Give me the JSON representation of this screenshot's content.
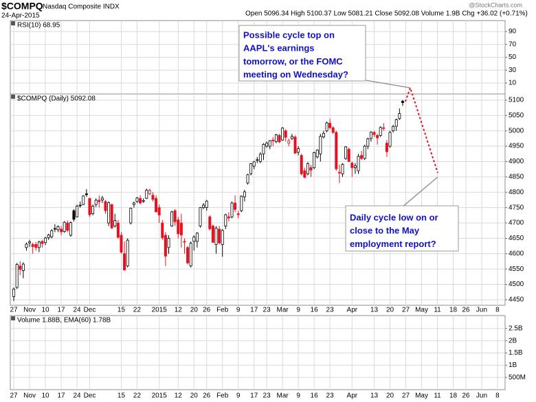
{
  "header": {
    "symbol": "$COMPQ",
    "name": "Nasdaq Composite INDX",
    "date": "24-Apr-2015",
    "quote": "Open 5096.34 High 5100.37 Low 5081.21 Close 5092.08 Volume 1.9B Chg +36.02 (+0.71%)",
    "source": "@StockCharts.com"
  },
  "chart_data": [
    {
      "type": "indicator",
      "label": "RSI(10) 68.95",
      "ylim": [
        -7,
        107
      ],
      "yticks": [
        10,
        30,
        50,
        70,
        90
      ],
      "grid": true
    },
    {
      "type": "candlestick",
      "label": "$COMPQ (Daily) 5092.08",
      "ylim": [
        4432,
        5120
      ],
      "yticks": [
        4450,
        4500,
        4550,
        4600,
        4650,
        4700,
        4750,
        4800,
        4850,
        4900,
        4950,
        5000,
        5050,
        5100
      ],
      "xlim": [
        -1.1,
        155.4
      ],
      "grid": true,
      "up_color": "#000000",
      "down_color": "#e8101e",
      "xticks": [
        {
          "value": 0,
          "label": "27"
        },
        {
          "value": 5,
          "label": "Nov"
        },
        {
          "value": 10,
          "label": "10"
        },
        {
          "value": 15,
          "label": "17"
        },
        {
          "value": 20,
          "label": "24"
        },
        {
          "value": 24,
          "label": "Dec"
        },
        {
          "value": 34,
          "label": "15"
        },
        {
          "value": 39,
          "label": "22"
        },
        {
          "value": 46,
          "label": "2015"
        },
        {
          "value": 52,
          "label": "12"
        },
        {
          "value": 57,
          "label": "20"
        },
        {
          "value": 61,
          "label": "26"
        },
        {
          "value": 66,
          "label": "Feb"
        },
        {
          "value": 71,
          "label": "9"
        },
        {
          "value": 76,
          "label": "17"
        },
        {
          "value": 80,
          "label": "23"
        },
        {
          "value": 85,
          "label": "Mar"
        },
        {
          "value": 90,
          "label": "9"
        },
        {
          "value": 95,
          "label": "16"
        },
        {
          "value": 100,
          "label": "23"
        },
        {
          "value": 107,
          "label": "Apr"
        },
        {
          "value": 114,
          "label": "13"
        },
        {
          "value": 119,
          "label": "20"
        },
        {
          "value": 124,
          "label": "27"
        },
        {
          "value": 129,
          "label": "May"
        },
        {
          "value": 134,
          "label": "11"
        },
        {
          "value": 139,
          "label": "18"
        },
        {
          "value": 143,
          "label": "26"
        },
        {
          "value": 148,
          "label": "Jun"
        },
        {
          "value": 153,
          "label": "8"
        }
      ],
      "candles": [
        [
          4460,
          4490,
          4446,
          4485
        ],
        [
          4490,
          4570,
          4485,
          4565
        ],
        [
          4560,
          4575,
          4530,
          4549
        ],
        [
          4545,
          4572,
          4520,
          4566
        ],
        [
          4620,
          4636,
          4610,
          4631
        ],
        [
          4635,
          4645,
          4622,
          4639
        ],
        [
          4630,
          4636,
          4600,
          4623
        ],
        [
          4630,
          4638,
          4610,
          4620
        ],
        [
          4620,
          4642,
          4605,
          4638
        ],
        [
          4640,
          4645,
          4620,
          4633
        ],
        [
          4636,
          4655,
          4628,
          4651
        ],
        [
          4652,
          4665,
          4645,
          4661
        ],
        [
          4655,
          4680,
          4650,
          4675
        ],
        [
          4682,
          4696,
          4670,
          4680
        ],
        [
          4678,
          4692,
          4670,
          4688
        ],
        [
          4680,
          4690,
          4660,
          4671
        ],
        [
          4672,
          4706,
          4668,
          4702
        ],
        [
          4700,
          4708,
          4670,
          4676
        ],
        [
          4660,
          4705,
          4655,
          4701
        ],
        [
          4740,
          4745,
          4705,
          4712
        ],
        [
          4720,
          4760,
          4718,
          4755
        ],
        [
          4758,
          4770,
          4750,
          4758
        ],
        [
          4760,
          4790,
          4758,
          4788
        ],
        [
          4795,
          4810,
          4785,
          4792
        ],
        [
          4780,
          4782,
          4720,
          4727
        ],
        [
          4730,
          4760,
          4725,
          4755
        ],
        [
          4760,
          4780,
          4752,
          4774
        ],
        [
          4774,
          4790,
          4750,
          4769
        ],
        [
          4775,
          4788,
          4765,
          4781
        ],
        [
          4770,
          4775,
          4730,
          4740
        ],
        [
          4700,
          4770,
          4690,
          4766
        ],
        [
          4760,
          4762,
          4680,
          4684
        ],
        [
          4690,
          4730,
          4685,
          4708
        ],
        [
          4700,
          4710,
          4650,
          4653
        ],
        [
          4660,
          4670,
          4600,
          4605
        ],
        [
          4600,
          4640,
          4545,
          4547
        ],
        [
          4560,
          4650,
          4555,
          4644
        ],
        [
          4700,
          4750,
          4695,
          4748
        ],
        [
          4760,
          4770,
          4750,
          4765
        ],
        [
          4770,
          4785,
          4765,
          4781
        ],
        [
          4780,
          4790,
          4760,
          4765
        ],
        [
          4770,
          4780,
          4765,
          4773
        ],
        [
          4780,
          4812,
          4778,
          4807
        ],
        [
          4795,
          4812,
          4790,
          4806
        ],
        [
          4790,
          4800,
          4770,
          4777
        ],
        [
          4780,
          4790,
          4735,
          4736
        ],
        [
          4750,
          4760,
          4700,
          4726
        ],
        [
          4700,
          4710,
          4645,
          4652
        ],
        [
          4660,
          4670,
          4560,
          4592
        ],
        [
          4620,
          4660,
          4600,
          4650
        ],
        [
          4690,
          4740,
          4688,
          4736
        ],
        [
          4740,
          4745,
          4690,
          4704
        ],
        [
          4710,
          4720,
          4650,
          4665
        ],
        [
          4700,
          4730,
          4620,
          4661
        ],
        [
          4640,
          4650,
          4600,
          4639
        ],
        [
          4620,
          4625,
          4565,
          4570
        ],
        [
          4560,
          4640,
          4555,
          4634
        ],
        [
          4640,
          4660,
          4610,
          4654
        ],
        [
          4640,
          4670,
          4620,
          4667
        ],
        [
          4690,
          4752,
          4685,
          4750
        ],
        [
          4750,
          4765,
          4745,
          4758
        ],
        [
          4750,
          4775,
          4740,
          4771
        ],
        [
          4720,
          4725,
          4675,
          4681
        ],
        [
          4690,
          4695,
          4635,
          4637
        ],
        [
          4630,
          4690,
          4600,
          4683
        ],
        [
          4680,
          4690,
          4630,
          4635
        ],
        [
          4630,
          4680,
          4590,
          4676
        ],
        [
          4690,
          4730,
          4680,
          4727
        ],
        [
          4720,
          4735,
          4705,
          4716
        ],
        [
          4720,
          4770,
          4715,
          4765
        ],
        [
          4765,
          4790,
          4735,
          4744
        ],
        [
          4730,
          4740,
          4715,
          4727
        ],
        [
          4740,
          4790,
          4735,
          4787
        ],
        [
          4785,
          4808,
          4770,
          4801
        ],
        [
          4830,
          4860,
          4825,
          4857
        ],
        [
          4860,
          4895,
          4855,
          4893
        ],
        [
          4885,
          4902,
          4875,
          4899
        ],
        [
          4905,
          4915,
          4895,
          4906
        ],
        [
          4900,
          4930,
          4895,
          4924
        ],
        [
          4925,
          4960,
          4905,
          4956
        ],
        [
          4950,
          4965,
          4945,
          4960
        ],
        [
          4950,
          4970,
          4940,
          4968
        ],
        [
          4970,
          4980,
          4950,
          4967
        ],
        [
          4965,
          4990,
          4960,
          4987
        ],
        [
          4985,
          4990,
          4960,
          4964
        ],
        [
          4970,
          5012,
          4968,
          5009
        ],
        [
          5000,
          5005,
          4965,
          4979
        ],
        [
          4960,
          4975,
          4950,
          4967
        ],
        [
          4975,
          4990,
          4970,
          4982
        ],
        [
          4980,
          4985,
          4925,
          4927
        ],
        [
          4930,
          4950,
          4920,
          4942
        ],
        [
          4920,
          4925,
          4855,
          4860
        ],
        [
          4870,
          4880,
          4845,
          4849
        ],
        [
          4860,
          4898,
          4855,
          4893
        ],
        [
          4880,
          4890,
          4850,
          4872
        ],
        [
          4880,
          4932,
          4875,
          4929
        ],
        [
          4915,
          4940,
          4910,
          4937
        ],
        [
          4925,
          4990,
          4900,
          4982
        ],
        [
          4980,
          5000,
          4975,
          4992
        ],
        [
          5000,
          5030,
          4995,
          5026
        ],
        [
          5025,
          5040,
          5005,
          5010
        ],
        [
          5010,
          5015,
          4990,
          4995
        ],
        [
          4995,
          5000,
          4870,
          4876
        ],
        [
          4865,
          4890,
          4830,
          4863
        ],
        [
          4860,
          4895,
          4850,
          4891
        ],
        [
          4910,
          4950,
          4905,
          4948
        ],
        [
          4940,
          4945,
          4898,
          4900
        ],
        [
          4895,
          4900,
          4850,
          4880
        ],
        [
          4880,
          4895,
          4860,
          4886
        ],
        [
          4870,
          4925,
          4860,
          4917
        ],
        [
          4920,
          4935,
          4905,
          4910
        ],
        [
          4910,
          4955,
          4905,
          4950
        ],
        [
          4950,
          4978,
          4940,
          4974
        ],
        [
          4975,
          4998,
          4965,
          4996
        ],
        [
          4995,
          5000,
          4980,
          4988
        ],
        [
          4985,
          4990,
          4955,
          4977
        ],
        [
          4985,
          5015,
          4980,
          5011
        ],
        [
          5010,
          5025,
          5000,
          5008
        ],
        [
          4960,
          4970,
          4915,
          4932
        ],
        [
          4950,
          5000,
          4945,
          4995
        ],
        [
          5000,
          5020,
          4995,
          5014
        ],
        [
          5015,
          5040,
          5000,
          5036
        ],
        [
          5040,
          5073,
          5035,
          5056
        ],
        [
          5096.34,
          5100.37,
          5081.21,
          5092.08
        ]
      ],
      "annotations": [
        {
          "lines": [
            "Possible cycle top on",
            "AAPL's earnings",
            "tomorrow, or the FOMC",
            "meeting on Wednesday?"
          ]
        },
        {
          "lines": [
            "Daily cycle low on or",
            "close to the May",
            "employment report?"
          ]
        }
      ]
    },
    {
      "type": "volume",
      "label": "Volume 1.88B, EMA(60) 1.78B",
      "ylim": [
        0,
        3030000000
      ],
      "grid": true,
      "yticks": [
        {
          "value": 500000000,
          "label": "500M"
        },
        {
          "value": 1000000000,
          "label": "1B"
        },
        {
          "value": 1500000000,
          "label": "1.5B"
        },
        {
          "value": 2000000000,
          "label": "2B"
        },
        {
          "value": 2500000000,
          "label": "2.5B"
        }
      ]
    }
  ]
}
